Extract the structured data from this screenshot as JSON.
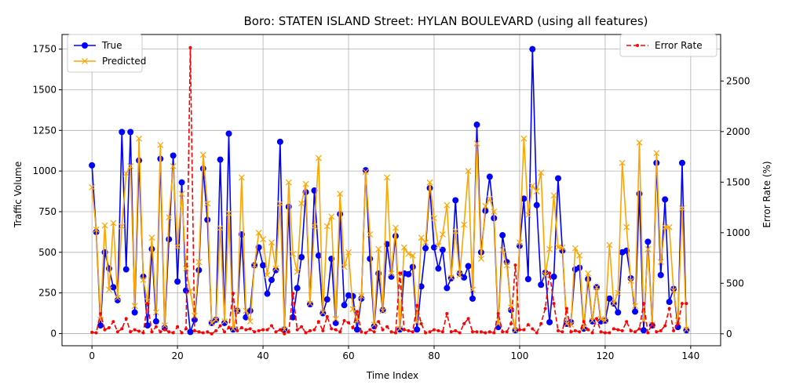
{
  "chart_data": {
    "type": "line",
    "title": "Boro: STATEN ISLAND Street: HYLAN BOULEVARD (using all features)",
    "xlabel": "Time Index",
    "ylabel": "Traffic Volume",
    "y2label": "Error Rate (%)",
    "xlim": [
      -7,
      147
    ],
    "ylim": [
      -75,
      1840
    ],
    "y2lim": [
      -118,
      2960
    ],
    "xticks": [
      0,
      20,
      40,
      60,
      80,
      100,
      120,
      140
    ],
    "yticks": [
      0,
      250,
      500,
      750,
      1000,
      1250,
      1500,
      1750
    ],
    "y2ticks": [
      0,
      500,
      1000,
      1500,
      2000,
      2500
    ],
    "grid": true,
    "legend_left": "upper-left",
    "legend_right": "upper-right",
    "colors": {
      "true": "#0000ff",
      "predicted": "#ffa500",
      "error": "#ff0000",
      "grid": "#b0b0b0"
    },
    "series": [
      {
        "name": "True",
        "marker": "circle",
        "values": [
          1035,
          625,
          50,
          500,
          400,
          285,
          205,
          1240,
          395,
          1240,
          130,
          1065,
          350,
          50,
          520,
          75,
          1075,
          35,
          580,
          1095,
          320,
          930,
          265,
          10,
          85,
          390,
          1015,
          700,
          65,
          85,
          1070,
          65,
          1230,
          25,
          140,
          610,
          100,
          140,
          420,
          530,
          420,
          245,
          330,
          390,
          1180,
          25,
          780,
          100,
          280,
          470,
          870,
          180,
          880,
          480,
          125,
          210,
          460,
          65,
          735,
          175,
          235,
          230,
          25,
          215,
          1005,
          460,
          45,
          370,
          145,
          550,
          350,
          600,
          25,
          370,
          365,
          410,
          25,
          290,
          525,
          895,
          530,
          400,
          515,
          280,
          340,
          820,
          370,
          345,
          415,
          215,
          1285,
          500,
          755,
          965,
          710,
          40,
          605,
          440,
          145,
          20,
          540,
          830,
          335,
          1750,
          790,
          300,
          375,
          70,
          350,
          955,
          510,
          60,
          70,
          395,
          405,
          30,
          335,
          75,
          285,
          75,
          80,
          215,
          185,
          130,
          500,
          510,
          340,
          135,
          860,
          20,
          565,
          50,
          1050,
          360,
          825,
          195,
          275,
          40,
          1050,
          20
        ]
      },
      {
        "name": "Predicted",
        "marker": "x",
        "values": [
          900,
          640,
          85,
          665,
          270,
          680,
          220,
          660,
          985,
          1030,
          170,
          1200,
          330,
          200,
          590,
          130,
          1160,
          50,
          715,
          1030,
          535,
          860,
          400,
          260,
          110,
          440,
          1100,
          800,
          65,
          85,
          650,
          75,
          740,
          30,
          140,
          960,
          140,
          75,
          420,
          620,
          580,
          360,
          560,
          400,
          800,
          25,
          930,
          490,
          380,
          800,
          920,
          185,
          660,
          1080,
          130,
          660,
          720,
          90,
          860,
          410,
          500,
          150,
          80,
          230,
          995,
          610,
          55,
          520,
          140,
          960,
          370,
          650,
          30,
          530,
          490,
          480,
          70,
          590,
          560,
          930,
          710,
          540,
          610,
          790,
          345,
          630,
          360,
          670,
          1000,
          270,
          1170,
          460,
          785,
          830,
          750,
          60,
          515,
          420,
          160,
          20,
          560,
          1200,
          730,
          910,
          875,
          990,
          360,
          520,
          850,
          530,
          530,
          60,
          55,
          525,
          480,
          35,
          370,
          80,
          285,
          90,
          80,
          545,
          185,
          250,
          1050,
          655,
          325,
          170,
          1175,
          80,
          520,
          55,
          1110,
          440,
          655,
          655,
          265,
          80,
          770,
          25
        ]
      },
      {
        "name": "Error Rate",
        "axis": "right",
        "style": "dashed",
        "marker": "dot",
        "values": [
          15,
          10,
          200,
          40,
          60,
          120,
          20,
          50,
          150,
          20,
          40,
          25,
          10,
          300,
          20,
          70,
          20,
          40,
          20,
          10,
          70,
          10,
          50,
          2830,
          30,
          20,
          10,
          20,
          0,
          30,
          80,
          20,
          60,
          400,
          30,
          60,
          40,
          50,
          20,
          30,
          40,
          40,
          80,
          20,
          40,
          0,
          20,
          400,
          40,
          70,
          10,
          30,
          40,
          120,
          30,
          170,
          50,
          40,
          20,
          130,
          110,
          60,
          220,
          20,
          10,
          40,
          20,
          120,
          40,
          70,
          20,
          10,
          600,
          40,
          30,
          20,
          280,
          100,
          10,
          20,
          40,
          30,
          20,
          200,
          20,
          30,
          10,
          100,
          150,
          20,
          20,
          20,
          10,
          20,
          10,
          200,
          20,
          20,
          100,
          680,
          40,
          40,
          90,
          50,
          10,
          100,
          250,
          600,
          300,
          30,
          20,
          250,
          20,
          30,
          20,
          120,
          40,
          10,
          150,
          20,
          10,
          10,
          50,
          40,
          30,
          120,
          30,
          20,
          50,
          300,
          10,
          100,
          20,
          30,
          80,
          250,
          30,
          100,
          300,
          300
        ]
      }
    ]
  }
}
